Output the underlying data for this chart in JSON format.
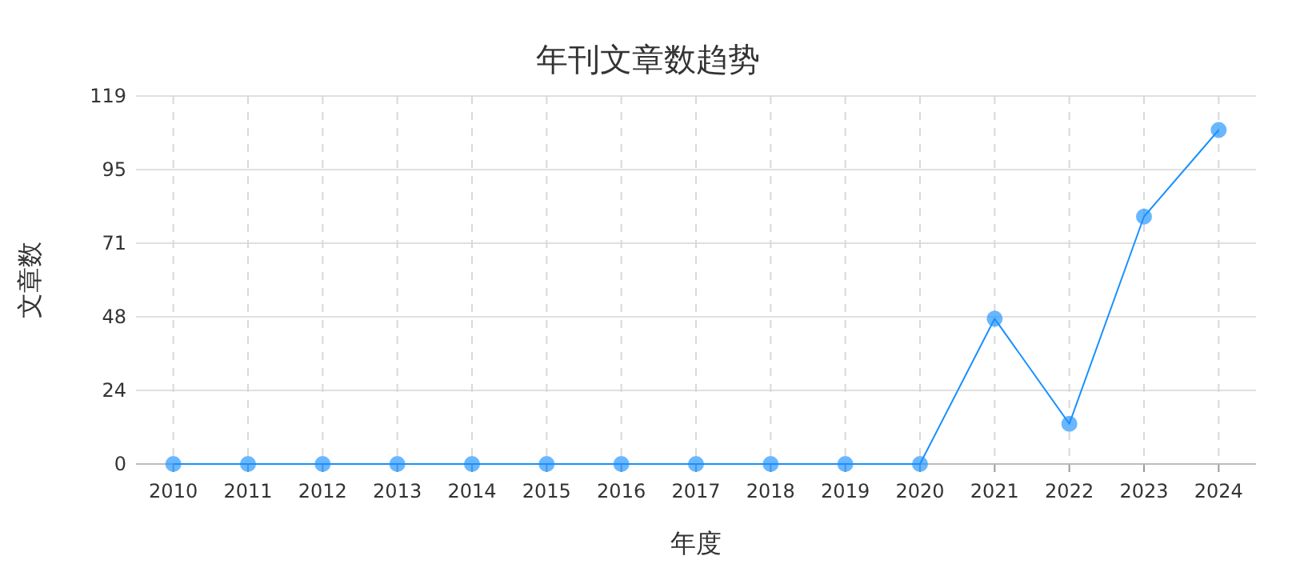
{
  "chart_data": {
    "type": "line",
    "title": "年刊文章数趋势",
    "xlabel": "年度",
    "ylabel": "文章数",
    "categories": [
      "2010",
      "2011",
      "2012",
      "2013",
      "2014",
      "2015",
      "2016",
      "2017",
      "2018",
      "2019",
      "2020",
      "2021",
      "2022",
      "2023",
      "2024"
    ],
    "series": [
      {
        "color": "#1890ff",
        "values": [
          0,
          0,
          0,
          0,
          0,
          0,
          0,
          0,
          0,
          0,
          0,
          47,
          13,
          80,
          108
        ]
      }
    ],
    "ylim": [
      0,
      119
    ],
    "yticks": [
      0,
      {
        "value": 23.8,
        "label": "24"
      },
      {
        "value": 47.6,
        "label": "48"
      },
      {
        "value": 71.4,
        "label": "71"
      },
      {
        "value": 95.2,
        "label": "95"
      },
      119
    ],
    "grid": true,
    "marker": "circle",
    "line_style": "solid"
  }
}
